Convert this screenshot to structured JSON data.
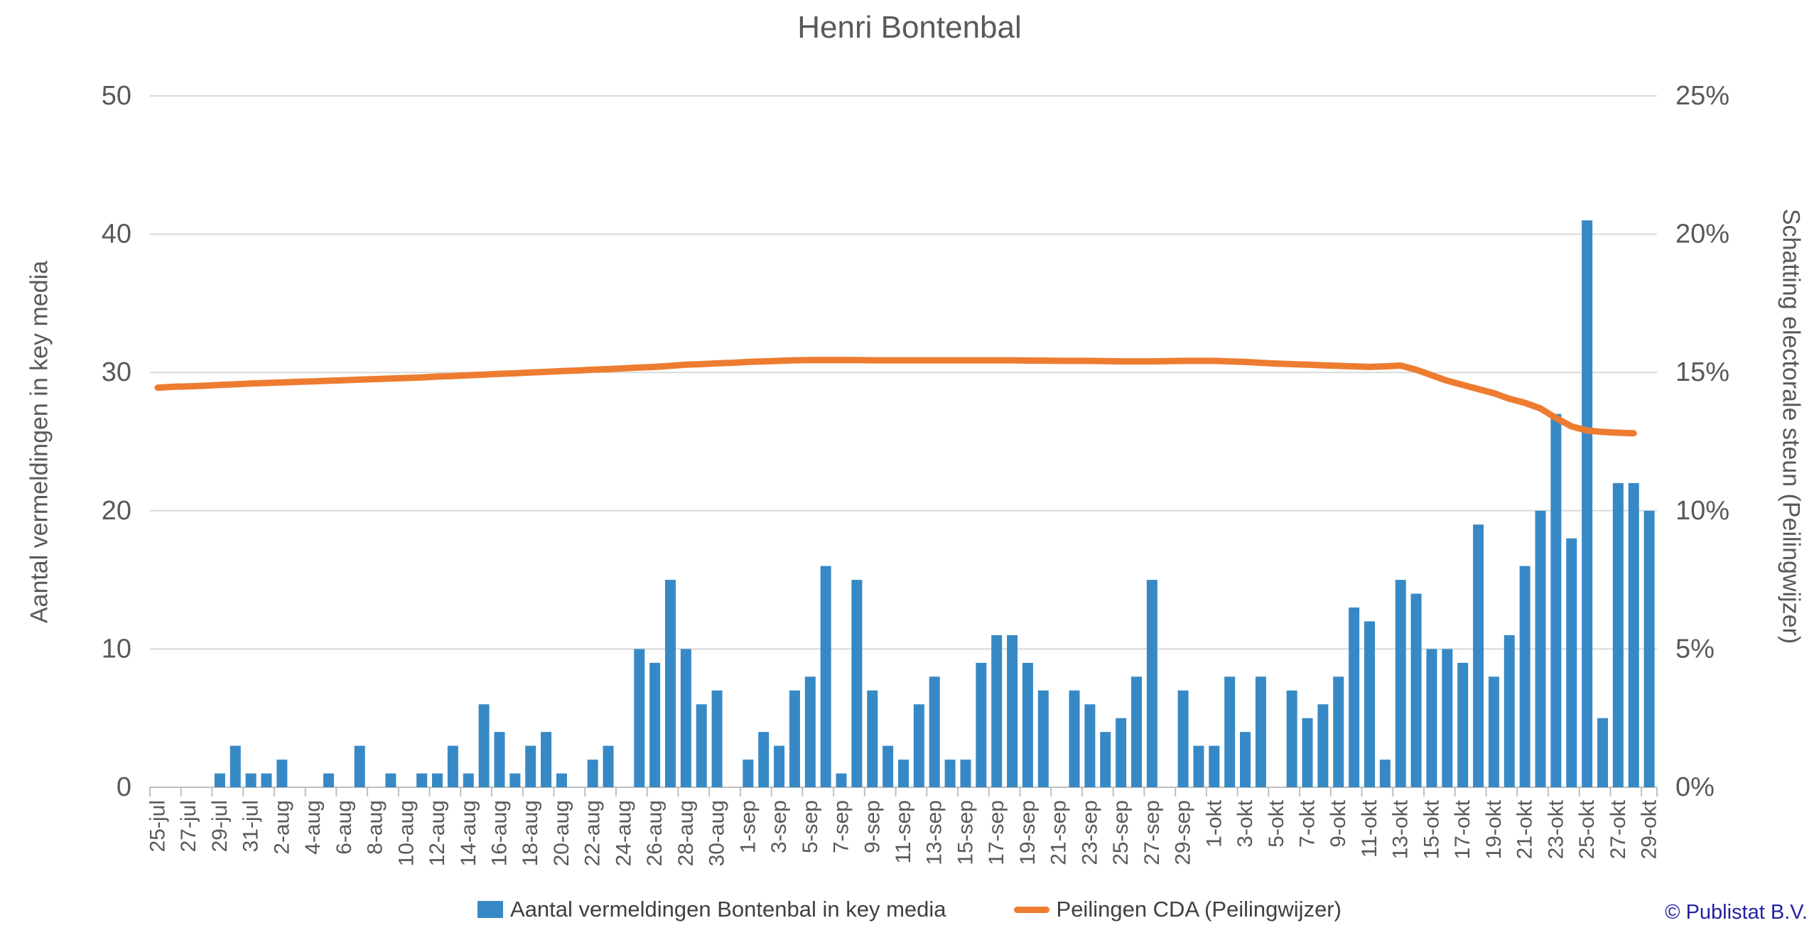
{
  "title": "Henri Bontenbal",
  "legend": {
    "bars_label": "Aantal vermeldingen Bontenbal in key media",
    "line_label": "Peilingen CDA (Peilingwijzer)"
  },
  "copyright": "© Publistat B.V.",
  "colors": {
    "bar": "#3789C6",
    "line": "#ED7C31",
    "grid": "#D9D9D9",
    "axis_line": "#BFBFBF",
    "axis_text": "#595959",
    "title_text": "#595959",
    "legend_text": "#404040",
    "copyright_text": "#2323A0"
  },
  "chart_data": {
    "type": "bar",
    "subtype": "bar+line combo, dual axis",
    "title": "Henri Bontenbal",
    "grid": "horizontal only",
    "legend_position": "bottom",
    "x_tick_label_step": 2,
    "left_axis": {
      "title": "Aantal vermeldingen in key media",
      "min": 0,
      "max": 50,
      "step": 10,
      "tick_labels": [
        "0",
        "10",
        "20",
        "30",
        "40",
        "50"
      ]
    },
    "right_axis": {
      "title": "Schatting electorale steun (Peilingwijzer)",
      "min": 0,
      "max": 25,
      "step": 5,
      "tick_labels": [
        "0%",
        "5%",
        "10%",
        "15%",
        "20%",
        "25%"
      ]
    },
    "x": [
      "25-jul",
      "26-jul",
      "27-jul",
      "28-jul",
      "29-jul",
      "30-jul",
      "31-jul",
      "1-aug",
      "2-aug",
      "3-aug",
      "4-aug",
      "5-aug",
      "6-aug",
      "7-aug",
      "8-aug",
      "9-aug",
      "10-aug",
      "11-aug",
      "12-aug",
      "13-aug",
      "14-aug",
      "15-aug",
      "16-aug",
      "17-aug",
      "18-aug",
      "19-aug",
      "20-aug",
      "21-aug",
      "22-aug",
      "23-aug",
      "24-aug",
      "25-aug",
      "26-aug",
      "27-aug",
      "28-aug",
      "29-aug",
      "30-aug",
      "31-aug",
      "1-sep",
      "2-sep",
      "3-sep",
      "4-sep",
      "5-sep",
      "6-sep",
      "7-sep",
      "8-sep",
      "9-sep",
      "10-sep",
      "11-sep",
      "12-sep",
      "13-sep",
      "14-sep",
      "15-sep",
      "16-sep",
      "17-sep",
      "18-sep",
      "19-sep",
      "20-sep",
      "21-sep",
      "22-sep",
      "23-sep",
      "24-sep",
      "25-sep",
      "26-sep",
      "27-sep",
      "28-sep",
      "29-sep",
      "30-sep",
      "1-okt",
      "2-okt",
      "3-okt",
      "4-okt",
      "5-okt",
      "6-okt",
      "7-okt",
      "8-okt",
      "9-okt",
      "10-okt",
      "11-okt",
      "12-okt",
      "13-okt",
      "14-okt",
      "15-okt",
      "16-okt",
      "17-okt",
      "18-okt",
      "19-okt",
      "20-okt",
      "21-okt",
      "22-okt",
      "23-okt",
      "24-okt",
      "25-okt",
      "26-okt",
      "27-okt",
      "28-okt",
      "29-okt"
    ],
    "series": [
      {
        "name": "Aantal vermeldingen Bontenbal in key media",
        "type": "bar",
        "axis": "left",
        "color": "#3789C6",
        "values": [
          0,
          0,
          0,
          0,
          1,
          3,
          1,
          1,
          2,
          0,
          0,
          1,
          0,
          3,
          0,
          1,
          0,
          1,
          1,
          3,
          1,
          6,
          4,
          1,
          3,
          4,
          1,
          0,
          2,
          3,
          0,
          10,
          9,
          15,
          10,
          6,
          7,
          0,
          2,
          4,
          3,
          7,
          8,
          16,
          1,
          15,
          7,
          3,
          2,
          6,
          8,
          2,
          2,
          9,
          11,
          11,
          9,
          7,
          0,
          7,
          6,
          4,
          5,
          8,
          15,
          0,
          7,
          3,
          3,
          8,
          4,
          8,
          0,
          7,
          5,
          6,
          8,
          13,
          12,
          2,
          15,
          14,
          10,
          10,
          9,
          19,
          8,
          11,
          16,
          20,
          27,
          18,
          41,
          5,
          22,
          22,
          20
        ]
      },
      {
        "name": "Peilingen CDA (Peilingwijzer)",
        "type": "line",
        "axis": "right",
        "color": "#ED7C31",
        "unit": "%",
        "values": [
          14.45,
          14.48,
          14.5,
          14.52,
          14.55,
          14.57,
          14.6,
          14.62,
          14.64,
          14.66,
          14.68,
          14.7,
          14.72,
          14.74,
          14.76,
          14.78,
          14.8,
          14.82,
          14.85,
          14.87,
          14.9,
          14.92,
          14.95,
          14.97,
          15.0,
          15.02,
          15.05,
          15.07,
          15.1,
          15.12,
          15.15,
          15.18,
          15.2,
          15.24,
          15.28,
          15.3,
          15.33,
          15.35,
          15.38,
          15.4,
          15.42,
          15.44,
          15.45,
          15.45,
          15.45,
          15.45,
          15.44,
          15.44,
          15.44,
          15.44,
          15.44,
          15.44,
          15.44,
          15.44,
          15.44,
          15.44,
          15.43,
          15.43,
          15.42,
          15.42,
          15.42,
          15.41,
          15.4,
          15.4,
          15.4,
          15.41,
          15.42,
          15.42,
          15.42,
          15.4,
          15.38,
          15.35,
          15.32,
          15.3,
          15.28,
          15.26,
          15.24,
          15.22,
          15.2,
          15.22,
          15.25,
          15.1,
          14.9,
          14.7,
          14.55,
          14.4,
          14.25,
          14.05,
          13.9,
          13.7,
          13.35,
          13.05,
          12.9,
          12.85,
          12.82,
          12.8,
          null
        ]
      }
    ]
  }
}
